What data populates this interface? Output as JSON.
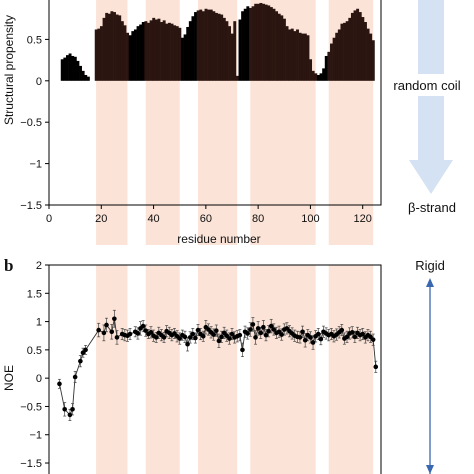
{
  "panel_b_label": "b",
  "side_labels": {
    "top_label": "random coil",
    "bottom_label": "β-strand",
    "rigid_label": "Rigid"
  },
  "colors": {
    "band": "#fbe3d7",
    "bar_low": "#000000",
    "bar_high": "#2b1510",
    "arrow": "#d5e2f4",
    "rigid_arrow": "#3a68b0",
    "noe_line": "#333333"
  },
  "chart_data": [
    {
      "type": "bar",
      "xlabel": "residue number",
      "ylabel": "Structural propensity",
      "xlim": [
        0,
        127
      ],
      "ylim": [
        -1.5,
        1.0
      ],
      "xticks": [
        0,
        20,
        40,
        60,
        80,
        100,
        120
      ],
      "yticks": [
        -1.5,
        -1,
        -0.5,
        0,
        0.5
      ],
      "ytick_labels": [
        "−1.5",
        "−1",
        "−0.5",
        "0",
        "0.5"
      ],
      "shaded_regions": [
        [
          18,
          30
        ],
        [
          37,
          50
        ],
        [
          57,
          72
        ],
        [
          77,
          102
        ],
        [
          107,
          124
        ]
      ],
      "x": [
        5,
        6,
        7,
        8,
        9,
        10,
        11,
        12,
        13,
        14,
        15,
        18,
        19,
        20,
        21,
        22,
        23,
        24,
        25,
        26,
        27,
        28,
        29,
        30,
        31,
        32,
        33,
        34,
        35,
        36,
        37,
        38,
        39,
        40,
        41,
        42,
        43,
        44,
        45,
        46,
        47,
        48,
        49,
        50,
        51,
        52,
        53,
        54,
        55,
        56,
        57,
        58,
        59,
        60,
        61,
        62,
        63,
        64,
        65,
        66,
        67,
        68,
        69,
        70,
        71,
        72,
        73,
        74,
        75,
        76,
        77,
        78,
        79,
        80,
        81,
        82,
        83,
        84,
        85,
        86,
        87,
        88,
        89,
        90,
        91,
        92,
        93,
        94,
        95,
        96,
        97,
        98,
        99,
        100,
        101,
        102,
        103,
        104,
        105,
        106,
        107,
        108,
        109,
        110,
        111,
        112,
        113,
        114,
        115,
        116,
        117,
        118,
        119,
        120,
        121,
        122,
        123,
        124
      ],
      "values": [
        0.26,
        0.28,
        0.31,
        0.33,
        0.3,
        0.29,
        0.24,
        0.18,
        0.12,
        0.07,
        0.05,
        0.62,
        0.63,
        0.66,
        0.76,
        0.82,
        0.81,
        0.84,
        0.83,
        0.8,
        0.79,
        0.72,
        0.67,
        0.58,
        0.55,
        0.6,
        0.62,
        0.66,
        0.68,
        0.71,
        0.72,
        0.7,
        0.73,
        0.76,
        0.74,
        0.75,
        0.71,
        0.73,
        0.69,
        0.7,
        0.69,
        0.67,
        0.66,
        0.64,
        0.52,
        0.56,
        0.65,
        0.72,
        0.78,
        0.83,
        0.85,
        0.86,
        0.84,
        0.87,
        0.86,
        0.86,
        0.84,
        0.82,
        0.81,
        0.8,
        0.76,
        0.72,
        0.66,
        0.57,
        0.72,
        0.06,
        0.74,
        0.84,
        0.87,
        0.9,
        0.88,
        0.9,
        0.93,
        0.93,
        0.94,
        0.93,
        0.92,
        0.91,
        0.89,
        0.87,
        0.84,
        0.81,
        0.79,
        0.75,
        0.66,
        0.62,
        0.63,
        0.6,
        0.62,
        0.58,
        0.57,
        0.57,
        0.55,
        0.26,
        0.12,
        0.09,
        0.07,
        0.09,
        0.15,
        0.3,
        0.35,
        0.45,
        0.52,
        0.58,
        0.62,
        0.69,
        0.7,
        0.72,
        0.76,
        0.82,
        0.85,
        0.87,
        0.83,
        0.77,
        0.71,
        0.63,
        0.57,
        0.49
      ]
    },
    {
      "type": "scatter",
      "xlabel": "",
      "ylabel": "NOE",
      "xlim": [
        0,
        127
      ],
      "ylim": [
        -1.8,
        2.0
      ],
      "xticks": [
        0,
        20,
        40,
        60,
        80,
        100,
        120
      ],
      "yticks": [
        -1.5,
        -1,
        -0.5,
        0,
        0.5,
        1,
        1.5,
        2
      ],
      "ytick_labels": [
        "−1.5",
        "−1",
        "−0.5",
        "0",
        "0.5",
        "1",
        "1.5",
        "2"
      ],
      "shaded_regions": [
        [
          18,
          30
        ],
        [
          37,
          50
        ],
        [
          57,
          72
        ],
        [
          77,
          102
        ],
        [
          107,
          124
        ]
      ],
      "x": [
        4,
        6,
        8,
        9,
        10,
        12,
        13,
        14,
        19,
        21,
        22,
        24,
        25,
        26,
        28,
        29,
        30,
        31,
        33,
        34,
        35,
        36,
        37,
        38,
        39,
        40,
        41,
        42,
        43,
        44,
        45,
        46,
        47,
        48,
        49,
        50,
        51,
        52,
        53,
        54,
        55,
        56,
        57,
        58,
        59,
        60,
        61,
        62,
        63,
        64,
        65,
        66,
        67,
        68,
        69,
        70,
        71,
        72,
        73,
        74,
        75,
        76,
        77,
        78,
        79,
        80,
        81,
        82,
        83,
        84,
        85,
        86,
        87,
        88,
        89,
        90,
        91,
        92,
        93,
        94,
        95,
        96,
        97,
        98,
        99,
        100,
        101,
        102,
        103,
        104,
        105,
        106,
        107,
        108,
        109,
        110,
        111,
        112,
        113,
        114,
        115,
        116,
        117,
        118,
        119,
        120,
        121,
        122,
        123,
        124,
        125
      ],
      "y": [
        -0.1,
        -0.55,
        -0.65,
        -0.55,
        0.02,
        0.3,
        0.45,
        0.5,
        0.85,
        0.8,
        0.94,
        0.82,
        1.05,
        0.72,
        0.78,
        0.76,
        0.75,
        0.78,
        0.82,
        0.79,
        0.88,
        0.92,
        0.84,
        0.78,
        0.81,
        0.75,
        0.72,
        0.8,
        0.76,
        0.72,
        0.83,
        0.8,
        0.76,
        0.79,
        0.74,
        0.7,
        0.76,
        0.73,
        0.6,
        0.72,
        0.78,
        0.71,
        0.85,
        0.78,
        0.74,
        0.9,
        0.86,
        0.81,
        0.77,
        0.84,
        0.66,
        0.73,
        0.8,
        0.75,
        0.7,
        0.78,
        0.72,
        0.74,
        0.76,
        0.5,
        0.82,
        0.79,
        0.86,
        0.95,
        0.72,
        0.88,
        0.8,
        0.9,
        0.76,
        0.83,
        0.92,
        0.86,
        0.8,
        0.82,
        0.77,
        0.86,
        0.88,
        0.83,
        0.79,
        0.75,
        0.73,
        0.72,
        0.82,
        0.67,
        0.76,
        0.72,
        0.63,
        0.74,
        0.78,
        0.69,
        0.82,
        0.79,
        0.76,
        0.78,
        0.74,
        0.77,
        0.81,
        0.85,
        0.7,
        0.73,
        0.79,
        0.81,
        0.73,
        0.8,
        0.76,
        0.78,
        0.72,
        0.76,
        0.73,
        0.68,
        0.2
      ],
      "err": [
        0.08,
        0.12,
        0.1,
        0.1,
        0.1,
        0.1,
        0.08,
        0.08,
        0.12,
        0.14,
        0.12,
        0.13,
        0.15,
        0.12,
        0.1,
        0.1,
        0.1,
        0.1,
        0.09,
        0.1,
        0.12,
        0.1,
        0.1,
        0.08,
        0.1,
        0.1,
        0.09,
        0.1,
        0.1,
        0.09,
        0.1,
        0.1,
        0.1,
        0.09,
        0.1,
        0.1,
        0.09,
        0.1,
        0.12,
        0.1,
        0.1,
        0.09,
        0.1,
        0.1,
        0.09,
        0.12,
        0.1,
        0.1,
        0.1,
        0.1,
        0.12,
        0.1,
        0.1,
        0.1,
        0.1,
        0.1,
        0.1,
        0.1,
        0.1,
        0.12,
        0.1,
        0.1,
        0.12,
        0.12,
        0.12,
        0.12,
        0.1,
        0.12,
        0.1,
        0.1,
        0.12,
        0.1,
        0.1,
        0.1,
        0.1,
        0.1,
        0.1,
        0.1,
        0.1,
        0.1,
        0.1,
        0.1,
        0.1,
        0.12,
        0.1,
        0.1,
        0.12,
        0.1,
        0.1,
        0.1,
        0.1,
        0.1,
        0.1,
        0.1,
        0.1,
        0.1,
        0.1,
        0.1,
        0.1,
        0.1,
        0.1,
        0.1,
        0.1,
        0.1,
        0.1,
        0.1,
        0.1,
        0.1,
        0.1,
        0.1,
        0.1
      ]
    }
  ]
}
